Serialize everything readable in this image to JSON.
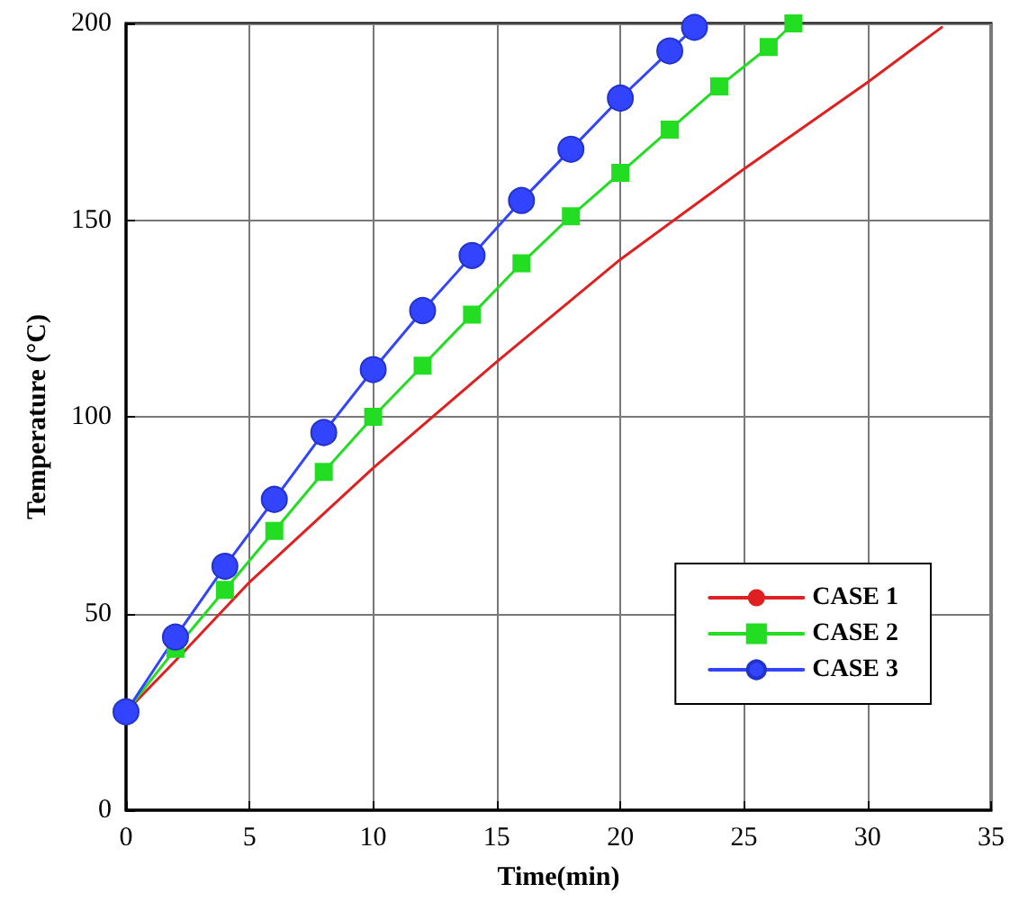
{
  "chart_data": {
    "type": "line",
    "xlabel": "Time(min)",
    "ylabel": "Temperature (°C)",
    "xlim": [
      0,
      35
    ],
    "xticks": [
      0,
      5,
      10,
      15,
      20,
      25,
      30,
      35
    ],
    "ylim": [
      0,
      200
    ],
    "yticks": [
      0,
      50,
      100,
      150,
      200
    ],
    "grid": true,
    "legend": "bottom right",
    "series": [
      {
        "name": "CASE 1",
        "color": "#e02020",
        "marker": "none",
        "x": [
          0,
          2,
          5,
          10,
          15,
          20,
          25,
          30,
          33
        ],
        "values": [
          25,
          38,
          58,
          87,
          114,
          140,
          163,
          185,
          199
        ]
      },
      {
        "name": "CASE 2",
        "color": "#22dd22",
        "marker": "square",
        "x": [
          0,
          2,
          4,
          6,
          8,
          10,
          12,
          14,
          16,
          18,
          20,
          22,
          24,
          26,
          27
        ],
        "values": [
          25,
          41,
          56,
          71,
          86,
          100,
          113,
          126,
          139,
          151,
          162,
          173,
          184,
          194,
          200
        ]
      },
      {
        "name": "CASE 3",
        "color": "#3344ff",
        "marker": "circle",
        "x": [
          0,
          2,
          4,
          6,
          8,
          10,
          12,
          14,
          16,
          18,
          20,
          22,
          23
        ],
        "values": [
          25,
          44,
          62,
          79,
          96,
          112,
          127,
          141,
          155,
          168,
          181,
          193,
          199
        ]
      }
    ]
  }
}
